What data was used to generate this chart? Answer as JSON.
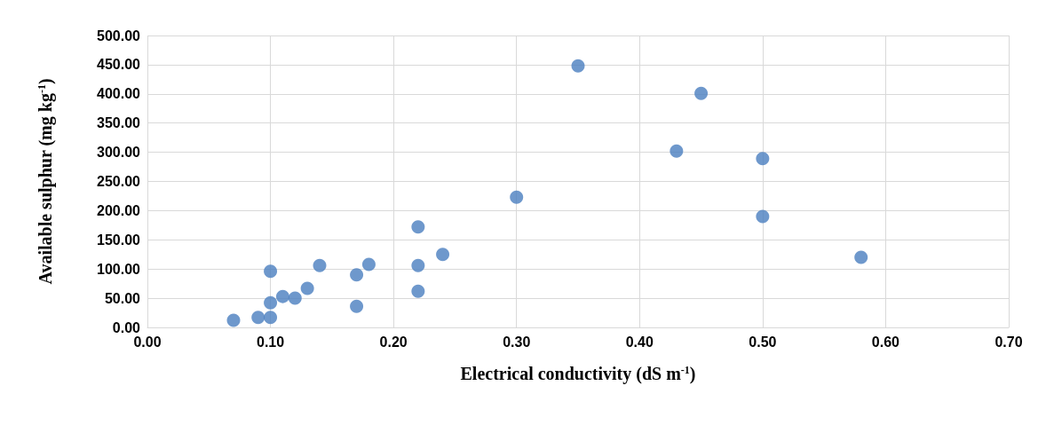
{
  "chart_data": {
    "type": "scatter",
    "xlabel": "Electrical conductivity (dS m$^{-1}$)",
    "ylabel": "Available sulphur (mg kg$^{-1}$)",
    "x": [
      0.07,
      0.09,
      0.1,
      0.1,
      0.1,
      0.11,
      0.12,
      0.13,
      0.14,
      0.17,
      0.17,
      0.18,
      0.22,
      0.22,
      0.22,
      0.24,
      0.3,
      0.35,
      0.43,
      0.45,
      0.5,
      0.5,
      0.58
    ],
    "series": [
      {
        "color": "#4a7ebf",
        "values": [
          12,
          17,
          17,
          42,
          96,
          53,
          50,
          67,
          106,
          36,
          90,
          108,
          172,
          106,
          62,
          125,
          223,
          448,
          302,
          401,
          289,
          190,
          120
        ]
      }
    ],
    "xlim": [
      0,
      0.7
    ],
    "xticks": [
      {
        "value": 0,
        "label": "0.00"
      },
      {
        "value": 0.1,
        "label": "0.10"
      },
      {
        "value": 0.2,
        "label": "0.20"
      },
      {
        "value": 0.3,
        "label": "0.30"
      },
      {
        "value": 0.4,
        "label": "0.40"
      },
      {
        "value": 0.5,
        "label": "0.50"
      },
      {
        "value": 0.6,
        "label": "0.60"
      },
      {
        "value": 0.7,
        "label": "0.70"
      }
    ],
    "ylim": [
      0,
      500
    ],
    "yticks": [
      {
        "value": 0,
        "label": "0.00"
      },
      {
        "value": 50,
        "label": "50.00"
      },
      {
        "value": 100,
        "label": "100.00"
      },
      {
        "value": 150,
        "label": "150.00"
      },
      {
        "value": 200,
        "label": "200.00"
      },
      {
        "value": 250,
        "label": "250.00"
      },
      {
        "value": 300,
        "label": "300.00"
      },
      {
        "value": 350,
        "label": "350.00"
      },
      {
        "value": 400,
        "label": "400.00"
      },
      {
        "value": 450,
        "label": "450.00"
      },
      {
        "value": 500,
        "label": "500.00"
      }
    ],
    "grid": true,
    "marker": "circle"
  }
}
